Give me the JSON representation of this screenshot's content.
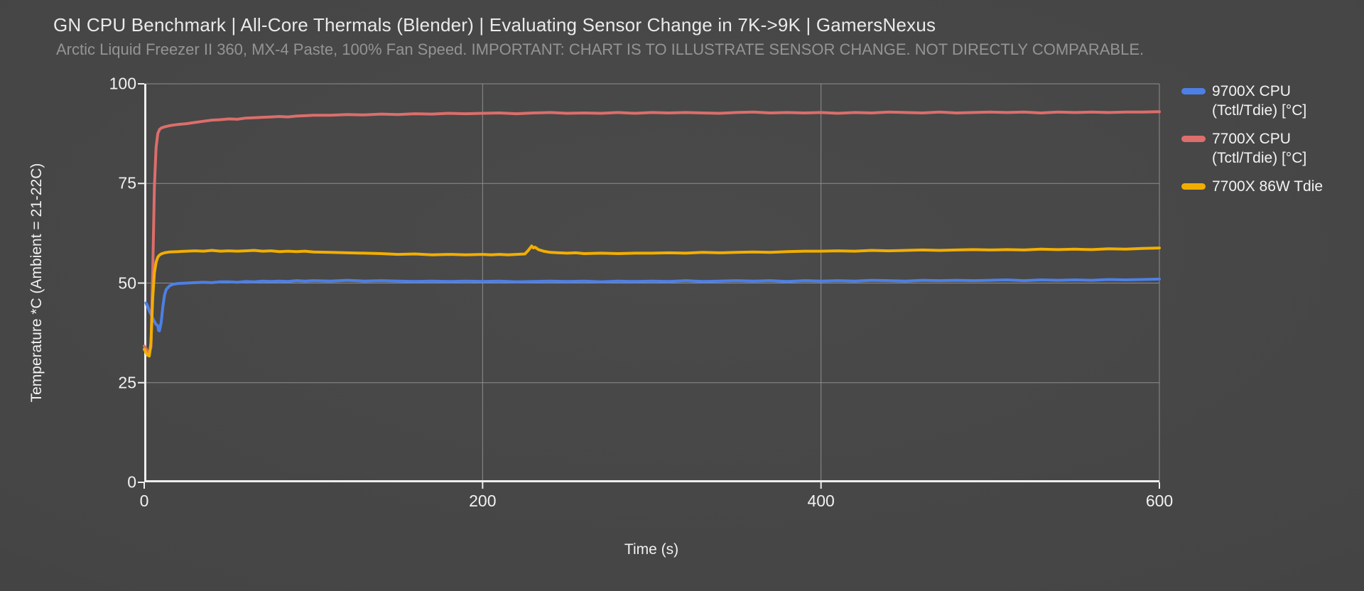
{
  "chart_data": {
    "type": "line",
    "title": "GN CPU Benchmark | All-Core Thermals (Blender) | Evaluating Sensor Change in 7K->9K | GamersNexus",
    "subtitle": "Arctic Liquid Freezer II 360, MX-4 Paste, 100% Fan Speed. IMPORTANT: CHART IS TO ILLUSTRATE SENSOR CHANGE. NOT DIRECTLY COMPARABLE.",
    "xlabel": "Time (s)",
    "ylabel": "Temperature *C (Ambient = 21-22C)",
    "xlim": [
      0,
      600
    ],
    "ylim": [
      0,
      100
    ],
    "xticks": [
      0,
      200,
      400,
      600
    ],
    "yticks": [
      0,
      25,
      50,
      75,
      100
    ],
    "grid": true,
    "legend_position": "right",
    "colors": {
      "background": "#454545",
      "grid": "#8e8e8e",
      "axis": "#ededed",
      "title_text": "#eaeaea",
      "subtitle_text": "#949494",
      "tick_text": "#f1f1f1"
    },
    "series": [
      {
        "id": "9700x-cpu",
        "name": "9700X CPU (Tctl/Tdie) [°C]",
        "legend_lines": [
          "9700X CPU",
          "(Tctl/Tdie) [°C]"
        ],
        "color": "#4d80e6",
        "points": [
          [
            1,
            45
          ],
          [
            2,
            44.2
          ],
          [
            3,
            43
          ],
          [
            4,
            42.2
          ],
          [
            5,
            41.2
          ],
          [
            6,
            40.4
          ],
          [
            7,
            39.6
          ],
          [
            8,
            39.3
          ],
          [
            8.5,
            38.1
          ],
          [
            9,
            38
          ],
          [
            10,
            40
          ],
          [
            11,
            44
          ],
          [
            12,
            47
          ],
          [
            13,
            48.4
          ],
          [
            15,
            49.3
          ],
          [
            17,
            49.7
          ],
          [
            20,
            49.9
          ],
          [
            25,
            50
          ],
          [
            30,
            50.1
          ],
          [
            35,
            50.2
          ],
          [
            40,
            50.1
          ],
          [
            45,
            50.3
          ],
          [
            50,
            50.3
          ],
          [
            55,
            50.2
          ],
          [
            60,
            50.4
          ],
          [
            65,
            50.3
          ],
          [
            70,
            50.5
          ],
          [
            75,
            50.4
          ],
          [
            80,
            50.5
          ],
          [
            85,
            50.4
          ],
          [
            90,
            50.6
          ],
          [
            95,
            50.5
          ],
          [
            100,
            50.6
          ],
          [
            110,
            50.5
          ],
          [
            120,
            50.7
          ],
          [
            130,
            50.5
          ],
          [
            140,
            50.6
          ],
          [
            150,
            50.5
          ],
          [
            160,
            50.4
          ],
          [
            170,
            50.5
          ],
          [
            180,
            50.4
          ],
          [
            190,
            50.5
          ],
          [
            200,
            50.4
          ],
          [
            210,
            50.5
          ],
          [
            220,
            50.3
          ],
          [
            230,
            50.4
          ],
          [
            240,
            50.5
          ],
          [
            250,
            50.4
          ],
          [
            260,
            50.5
          ],
          [
            270,
            50.3
          ],
          [
            280,
            50.5
          ],
          [
            290,
            50.4
          ],
          [
            300,
            50.5
          ],
          [
            310,
            50.4
          ],
          [
            320,
            50.6
          ],
          [
            330,
            50.4
          ],
          [
            340,
            50.5
          ],
          [
            350,
            50.6
          ],
          [
            360,
            50.5
          ],
          [
            370,
            50.6
          ],
          [
            380,
            50.4
          ],
          [
            390,
            50.6
          ],
          [
            400,
            50.5
          ],
          [
            410,
            50.6
          ],
          [
            420,
            50.5
          ],
          [
            430,
            50.7
          ],
          [
            440,
            50.6
          ],
          [
            450,
            50.5
          ],
          [
            460,
            50.7
          ],
          [
            470,
            50.6
          ],
          [
            480,
            50.7
          ],
          [
            490,
            50.6
          ],
          [
            500,
            50.7
          ],
          [
            510,
            50.8
          ],
          [
            520,
            50.6
          ],
          [
            530,
            50.8
          ],
          [
            540,
            50.7
          ],
          [
            550,
            50.8
          ],
          [
            560,
            50.7
          ],
          [
            570,
            50.9
          ],
          [
            580,
            50.8
          ],
          [
            590,
            50.9
          ],
          [
            600,
            51
          ]
        ]
      },
      {
        "id": "7700x-cpu",
        "name": "7700X CPU (Tctl/Tdie) [°C]",
        "legend_lines": [
          "7700X CPU",
          "(Tctl/Tdie) [°C]"
        ],
        "color": "#dc6e6b",
        "points": [
          [
            0,
            34.2
          ],
          [
            1,
            33.6
          ],
          [
            2,
            32.8
          ],
          [
            3,
            32.3
          ],
          [
            4,
            34
          ],
          [
            5,
            52
          ],
          [
            6,
            74
          ],
          [
            7,
            84
          ],
          [
            8,
            87.5
          ],
          [
            9,
            88.5
          ],
          [
            10,
            88.9
          ],
          [
            12,
            89.2
          ],
          [
            15,
            89.5
          ],
          [
            18,
            89.7
          ],
          [
            20,
            89.8
          ],
          [
            25,
            90
          ],
          [
            30,
            90.3
          ],
          [
            35,
            90.6
          ],
          [
            40,
            90.9
          ],
          [
            45,
            91
          ],
          [
            50,
            91.2
          ],
          [
            55,
            91.1
          ],
          [
            60,
            91.4
          ],
          [
            65,
            91.5
          ],
          [
            70,
            91.6
          ],
          [
            75,
            91.7
          ],
          [
            80,
            91.8
          ],
          [
            85,
            91.7
          ],
          [
            90,
            91.9
          ],
          [
            95,
            92
          ],
          [
            100,
            92.1
          ],
          [
            110,
            92.1
          ],
          [
            120,
            92.3
          ],
          [
            130,
            92.2
          ],
          [
            140,
            92.4
          ],
          [
            150,
            92.3
          ],
          [
            160,
            92.5
          ],
          [
            170,
            92.4
          ],
          [
            180,
            92.6
          ],
          [
            190,
            92.5
          ],
          [
            200,
            92.6
          ],
          [
            210,
            92.7
          ],
          [
            220,
            92.5
          ],
          [
            230,
            92.7
          ],
          [
            240,
            92.8
          ],
          [
            250,
            92.6
          ],
          [
            260,
            92.7
          ],
          [
            270,
            92.6
          ],
          [
            280,
            92.8
          ],
          [
            290,
            92.6
          ],
          [
            300,
            92.8
          ],
          [
            310,
            92.7
          ],
          [
            320,
            92.8
          ],
          [
            330,
            92.7
          ],
          [
            340,
            92.6
          ],
          [
            350,
            92.8
          ],
          [
            360,
            92.9
          ],
          [
            370,
            92.7
          ],
          [
            380,
            92.8
          ],
          [
            390,
            92.7
          ],
          [
            400,
            92.8
          ],
          [
            410,
            92.6
          ],
          [
            420,
            92.8
          ],
          [
            430,
            92.7
          ],
          [
            440,
            92.9
          ],
          [
            450,
            92.8
          ],
          [
            460,
            92.7
          ],
          [
            470,
            92.9
          ],
          [
            480,
            92.7
          ],
          [
            490,
            92.8
          ],
          [
            500,
            92.9
          ],
          [
            510,
            92.8
          ],
          [
            520,
            92.9
          ],
          [
            530,
            92.7
          ],
          [
            540,
            92.9
          ],
          [
            550,
            92.8
          ],
          [
            560,
            92.9
          ],
          [
            570,
            92.8
          ],
          [
            580,
            92.9
          ],
          [
            590,
            92.9
          ],
          [
            600,
            93
          ]
        ]
      },
      {
        "id": "7700x-86w-tdie",
        "name": "7700X 86W Tdie",
        "legend_lines": [
          "7700X 86W Tdie"
        ],
        "color": "#f2ae00",
        "points": [
          [
            0,
            33.4
          ],
          [
            1,
            32.6
          ],
          [
            2,
            31.9
          ],
          [
            3,
            31.7
          ],
          [
            4,
            35
          ],
          [
            5,
            46
          ],
          [
            6,
            52.5
          ],
          [
            7,
            55.2
          ],
          [
            8,
            56.5
          ],
          [
            9,
            57
          ],
          [
            10,
            57.3
          ],
          [
            12,
            57.6
          ],
          [
            15,
            57.8
          ],
          [
            20,
            57.9
          ],
          [
            25,
            58
          ],
          [
            30,
            58.1
          ],
          [
            35,
            58
          ],
          [
            40,
            58.2
          ],
          [
            45,
            58
          ],
          [
            50,
            58.1
          ],
          [
            55,
            58
          ],
          [
            60,
            58.1
          ],
          [
            65,
            58.2
          ],
          [
            70,
            58
          ],
          [
            75,
            58.1
          ],
          [
            80,
            57.9
          ],
          [
            85,
            58
          ],
          [
            90,
            57.9
          ],
          [
            95,
            58
          ],
          [
            100,
            57.8
          ],
          [
            110,
            57.7
          ],
          [
            120,
            57.6
          ],
          [
            130,
            57.5
          ],
          [
            140,
            57.4
          ],
          [
            150,
            57.2
          ],
          [
            160,
            57.3
          ],
          [
            170,
            57.1
          ],
          [
            180,
            57.2
          ],
          [
            190,
            57.1
          ],
          [
            200,
            57.2
          ],
          [
            205,
            57.1
          ],
          [
            210,
            57.2
          ],
          [
            215,
            57.1
          ],
          [
            220,
            57.2
          ],
          [
            225,
            57.3
          ],
          [
            227,
            58.2
          ],
          [
            229,
            59.3
          ],
          [
            230,
            58.8
          ],
          [
            231,
            59
          ],
          [
            233,
            58.4
          ],
          [
            236,
            58
          ],
          [
            240,
            57.7
          ],
          [
            245,
            57.6
          ],
          [
            250,
            57.5
          ],
          [
            255,
            57.6
          ],
          [
            260,
            57.4
          ],
          [
            270,
            57.5
          ],
          [
            280,
            57.4
          ],
          [
            290,
            57.5
          ],
          [
            300,
            57.5
          ],
          [
            310,
            57.6
          ],
          [
            320,
            57.5
          ],
          [
            330,
            57.7
          ],
          [
            340,
            57.6
          ],
          [
            350,
            57.7
          ],
          [
            360,
            57.8
          ],
          [
            370,
            57.7
          ],
          [
            380,
            57.9
          ],
          [
            390,
            58
          ],
          [
            400,
            58
          ],
          [
            410,
            58.1
          ],
          [
            420,
            58
          ],
          [
            430,
            58.2
          ],
          [
            440,
            58.1
          ],
          [
            450,
            58.2
          ],
          [
            460,
            58.3
          ],
          [
            470,
            58.2
          ],
          [
            480,
            58.3
          ],
          [
            490,
            58.4
          ],
          [
            500,
            58.3
          ],
          [
            510,
            58.4
          ],
          [
            520,
            58.3
          ],
          [
            530,
            58.5
          ],
          [
            540,
            58.4
          ],
          [
            550,
            58.5
          ],
          [
            560,
            58.4
          ],
          [
            570,
            58.6
          ],
          [
            580,
            58.5
          ],
          [
            590,
            58.7
          ],
          [
            600,
            58.8
          ]
        ]
      }
    ]
  }
}
